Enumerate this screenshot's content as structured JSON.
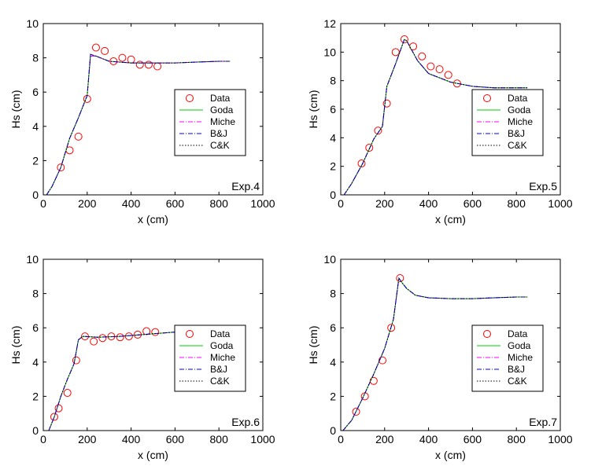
{
  "chart_data": [
    {
      "type": "line",
      "annotation": "Exp.4",
      "xlabel": "x (cm)",
      "ylabel": "Hs (cm)",
      "xlim": [
        0,
        1000
      ],
      "ylim": [
        0,
        10
      ],
      "xticks": [
        0,
        200,
        400,
        600,
        800,
        1000
      ],
      "yticks": [
        0,
        2,
        4,
        6,
        8,
        10
      ],
      "legend_position": "right-middle",
      "series": [
        {
          "name": "Data",
          "style": "markers",
          "color": "#ff0000",
          "x": [
            80,
            120,
            160,
            200,
            240,
            280,
            320,
            360,
            400,
            440,
            480,
            520
          ],
          "y": [
            1.6,
            2.6,
            3.4,
            5.6,
            8.6,
            8.4,
            7.8,
            8.0,
            7.9,
            7.6,
            7.6,
            7.5
          ]
        },
        {
          "name": "Goda",
          "style": "solid",
          "color": "#00cc00",
          "x": [
            15,
            40,
            80,
            120,
            160,
            200,
            215,
            240,
            300,
            400,
            500,
            600,
            700,
            800,
            850
          ],
          "y": [
            0,
            0.5,
            1.6,
            3.3,
            4.5,
            5.8,
            8.1,
            8.1,
            7.8,
            7.7,
            7.7,
            7.7,
            7.75,
            7.8,
            7.8
          ]
        },
        {
          "name": "Miche",
          "style": "dashdot",
          "color": "#ff00ff",
          "x": [
            15,
            40,
            80,
            120,
            160,
            200,
            215,
            240,
            300,
            400,
            500,
            600,
            700,
            800,
            850
          ],
          "y": [
            0,
            0.5,
            1.6,
            3.3,
            4.5,
            5.8,
            8.1,
            8.1,
            7.8,
            7.7,
            7.7,
            7.7,
            7.75,
            7.8,
            7.8
          ]
        },
        {
          "name": "B&J",
          "style": "dashdot",
          "color": "#0000ff",
          "x": [
            15,
            40,
            80,
            120,
            160,
            200,
            215,
            240,
            300,
            400,
            500,
            600,
            700,
            800,
            850
          ],
          "y": [
            0,
            0.5,
            1.6,
            3.3,
            4.5,
            5.8,
            8.2,
            8.1,
            7.8,
            7.7,
            7.7,
            7.7,
            7.75,
            7.8,
            7.8
          ]
        },
        {
          "name": "C&K",
          "style": "dotted",
          "color": "#000000",
          "x": [
            15,
            40,
            80,
            120,
            160,
            200,
            215,
            240,
            300,
            400,
            500,
            600,
            700,
            800,
            850
          ],
          "y": [
            0,
            0.5,
            1.6,
            3.3,
            4.5,
            5.8,
            8.2,
            8.1,
            7.8,
            7.7,
            7.7,
            7.7,
            7.75,
            7.8,
            7.8
          ]
        }
      ]
    },
    {
      "type": "line",
      "annotation": "Exp.5",
      "xlabel": "x (cm)",
      "ylabel": "Hs (cm)",
      "xlim": [
        0,
        1000
      ],
      "ylim": [
        0,
        12
      ],
      "xticks": [
        0,
        200,
        400,
        600,
        800,
        1000
      ],
      "yticks": [
        0,
        2,
        4,
        6,
        8,
        10,
        12
      ],
      "legend_position": "right-middle",
      "series": [
        {
          "name": "Data",
          "style": "markers",
          "color": "#ff0000",
          "x": [
            95,
            130,
            170,
            210,
            250,
            290,
            330,
            370,
            410,
            450,
            490,
            530
          ],
          "y": [
            2.2,
            3.3,
            4.5,
            6.4,
            10.0,
            10.9,
            10.4,
            9.7,
            9.0,
            8.8,
            8.4,
            7.8
          ]
        },
        {
          "name": "Goda",
          "style": "solid",
          "color": "#00cc00",
          "x": [
            15,
            50,
            100,
            150,
            190,
            210,
            250,
            290,
            300,
            350,
            400,
            450,
            500,
            600,
            700,
            850
          ],
          "y": [
            0,
            0.8,
            2.2,
            3.9,
            4.8,
            7.6,
            9.2,
            10.9,
            10.8,
            9.4,
            8.5,
            8.2,
            7.9,
            7.6,
            7.5,
            7.5
          ]
        },
        {
          "name": "Miche",
          "style": "dashdot",
          "color": "#ff00ff",
          "x": [
            15,
            50,
            100,
            150,
            190,
            210,
            250,
            290,
            300,
            350,
            400,
            450,
            500,
            600,
            700,
            850
          ],
          "y": [
            0,
            0.8,
            2.2,
            3.9,
            4.8,
            7.6,
            9.2,
            10.9,
            10.8,
            9.4,
            8.5,
            8.2,
            7.9,
            7.6,
            7.5,
            7.5
          ]
        },
        {
          "name": "B&J",
          "style": "dashdot",
          "color": "#0000ff",
          "x": [
            15,
            50,
            100,
            150,
            190,
            210,
            250,
            290,
            300,
            350,
            400,
            450,
            500,
            600,
            700,
            850
          ],
          "y": [
            0,
            0.8,
            2.2,
            3.9,
            4.8,
            7.6,
            9.2,
            10.9,
            10.8,
            9.4,
            8.5,
            8.2,
            7.9,
            7.6,
            7.5,
            7.5
          ]
        },
        {
          "name": "C&K",
          "style": "dotted",
          "color": "#000000",
          "x": [
            15,
            50,
            100,
            150,
            190,
            210,
            250,
            290,
            300,
            350,
            400,
            450,
            500,
            600,
            700,
            850
          ],
          "y": [
            0,
            0.8,
            2.2,
            3.9,
            4.8,
            7.6,
            9.2,
            10.9,
            10.8,
            9.4,
            8.5,
            8.2,
            7.9,
            7.6,
            7.5,
            7.5
          ]
        }
      ]
    },
    {
      "type": "line",
      "annotation": "Exp.6",
      "xlabel": "x (cm)",
      "ylabel": "Hs (cm)",
      "xlim": [
        0,
        1000
      ],
      "ylim": [
        0,
        10
      ],
      "xticks": [
        0,
        200,
        400,
        600,
        800,
        1000
      ],
      "yticks": [
        0,
        2,
        4,
        6,
        8,
        10
      ],
      "legend_position": "right-middle",
      "series": [
        {
          "name": "Data",
          "style": "markers",
          "color": "#ff0000",
          "x": [
            50,
            70,
            110,
            150,
            190,
            230,
            270,
            310,
            350,
            390,
            430,
            470,
            510
          ],
          "y": [
            0.8,
            1.3,
            2.2,
            4.1,
            5.5,
            5.2,
            5.4,
            5.5,
            5.45,
            5.5,
            5.6,
            5.8,
            5.75
          ]
        },
        {
          "name": "Goda",
          "style": "solid",
          "color": "#00cc00",
          "x": [
            25,
            50,
            80,
            110,
            140,
            160,
            180,
            250,
            350,
            450,
            550,
            650,
            750,
            850
          ],
          "y": [
            0,
            0.8,
            2.0,
            3.0,
            3.9,
            5.3,
            5.5,
            5.45,
            5.5,
            5.6,
            5.7,
            5.8,
            5.85,
            5.9
          ]
        },
        {
          "name": "Miche",
          "style": "dashdot",
          "color": "#ff00ff",
          "x": [
            25,
            50,
            80,
            110,
            140,
            160,
            180,
            250,
            350,
            450,
            550,
            650,
            750,
            850
          ],
          "y": [
            0,
            0.8,
            2.0,
            3.0,
            3.9,
            5.3,
            5.5,
            5.45,
            5.5,
            5.6,
            5.7,
            5.8,
            5.85,
            5.9
          ]
        },
        {
          "name": "B&J",
          "style": "dashdot",
          "color": "#0000ff",
          "x": [
            25,
            50,
            80,
            110,
            140,
            160,
            180,
            250,
            350,
            450,
            550,
            650,
            750,
            850
          ],
          "y": [
            0,
            0.8,
            2.0,
            3.0,
            3.9,
            5.3,
            5.5,
            5.45,
            5.5,
            5.6,
            5.7,
            5.8,
            5.85,
            5.9
          ]
        },
        {
          "name": "C&K",
          "style": "dotted",
          "color": "#000000",
          "x": [
            25,
            50,
            80,
            110,
            140,
            160,
            180,
            250,
            350,
            450,
            550,
            650,
            750,
            850
          ],
          "y": [
            0,
            0.8,
            2.0,
            3.0,
            3.9,
            5.3,
            5.5,
            5.45,
            5.5,
            5.6,
            5.7,
            5.8,
            5.85,
            5.9
          ]
        }
      ]
    },
    {
      "type": "line",
      "annotation": "Exp.7",
      "xlabel": "x (cm)",
      "ylabel": "Hs (cm)",
      "xlim": [
        0,
        1000
      ],
      "ylim": [
        0,
        10
      ],
      "xticks": [
        0,
        200,
        400,
        600,
        800,
        1000
      ],
      "yticks": [
        0,
        2,
        4,
        6,
        8,
        10
      ],
      "legend_position": "right-middle",
      "series": [
        {
          "name": "Data",
          "style": "markers",
          "color": "#ff0000",
          "x": [
            70,
            110,
            150,
            190,
            230,
            270
          ],
          "y": [
            1.1,
            2.0,
            2.9,
            4.1,
            6.0,
            8.9
          ]
        },
        {
          "name": "Goda",
          "style": "solid",
          "color": "#00cc00",
          "x": [
            10,
            50,
            100,
            150,
            200,
            240,
            265,
            275,
            300,
            340,
            400,
            500,
            600,
            700,
            800,
            850
          ],
          "y": [
            0,
            0.6,
            1.9,
            3.3,
            4.8,
            6.5,
            8.9,
            8.7,
            8.3,
            7.9,
            7.75,
            7.7,
            7.7,
            7.75,
            7.8,
            7.8
          ]
        },
        {
          "name": "Miche",
          "style": "dashdot",
          "color": "#ff00ff",
          "x": [
            10,
            50,
            100,
            150,
            200,
            240,
            265,
            275,
            300,
            340,
            400,
            500,
            600,
            700,
            800,
            850
          ],
          "y": [
            0,
            0.6,
            1.9,
            3.3,
            4.8,
            6.5,
            8.9,
            8.7,
            8.3,
            7.9,
            7.75,
            7.7,
            7.7,
            7.75,
            7.8,
            7.8
          ]
        },
        {
          "name": "B&J",
          "style": "dashdot",
          "color": "#0000ff",
          "x": [
            10,
            50,
            100,
            150,
            200,
            240,
            265,
            275,
            300,
            340,
            400,
            500,
            600,
            700,
            800,
            850
          ],
          "y": [
            0,
            0.6,
            1.9,
            3.3,
            4.8,
            6.5,
            8.9,
            8.7,
            8.3,
            7.9,
            7.75,
            7.7,
            7.7,
            7.75,
            7.8,
            7.8
          ]
        },
        {
          "name": "C&K",
          "style": "dotted",
          "color": "#000000",
          "x": [
            10,
            50,
            100,
            150,
            200,
            240,
            265,
            275,
            300,
            340,
            400,
            500,
            600,
            700,
            800,
            850
          ],
          "y": [
            0,
            0.6,
            1.9,
            3.3,
            4.8,
            6.5,
            8.9,
            8.7,
            8.3,
            7.9,
            7.75,
            7.7,
            7.7,
            7.75,
            7.8,
            7.8
          ]
        }
      ]
    }
  ]
}
